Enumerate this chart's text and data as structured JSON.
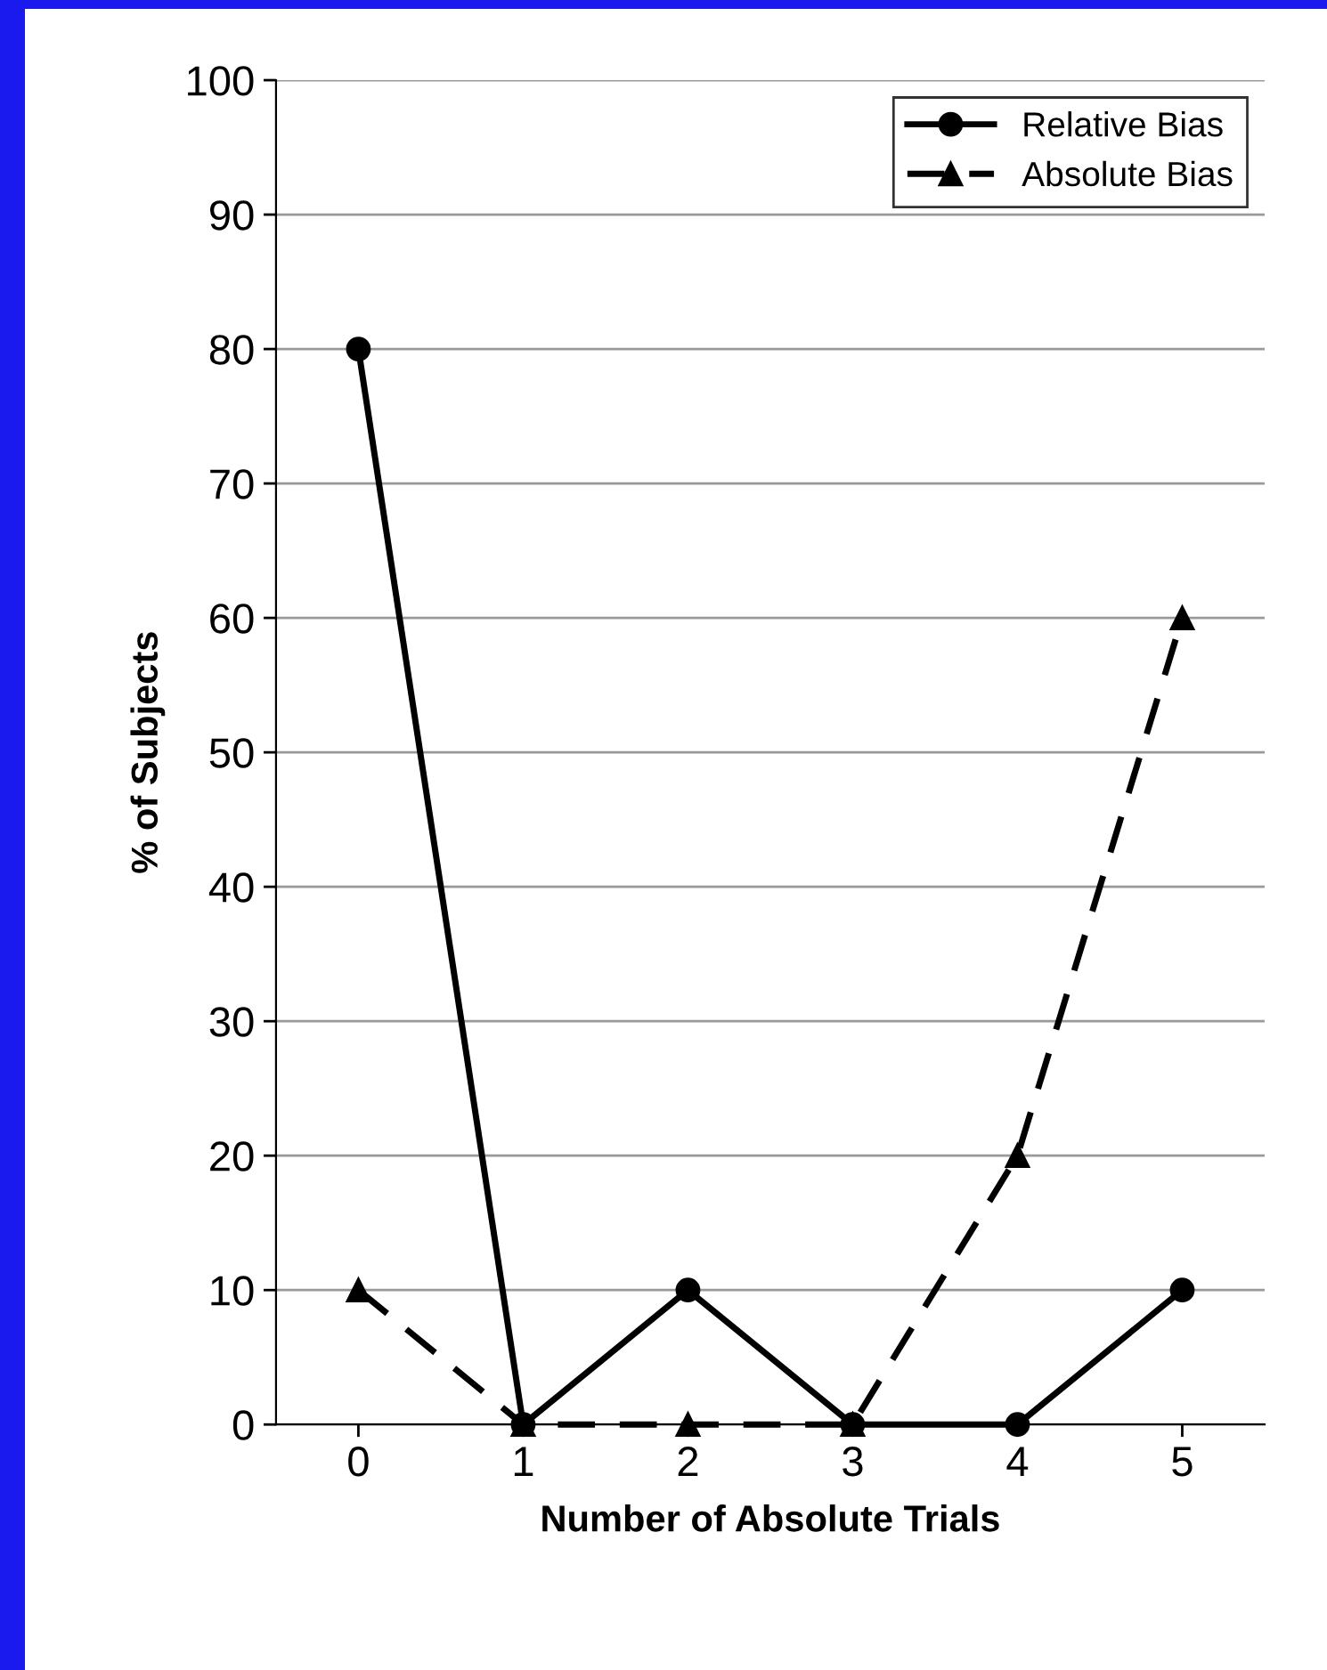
{
  "chart_data": {
    "type": "line",
    "xlabel": "Number of Absolute Trials",
    "ylabel": "% of Subjects",
    "categories": [
      "0",
      "1",
      "2",
      "3",
      "4",
      "5"
    ],
    "series": [
      {
        "name": "Relative Bias",
        "color": "#000000",
        "marker": "circle",
        "line_style": "solid",
        "values": [
          80,
          0,
          10,
          0,
          0,
          10
        ]
      },
      {
        "name": "Absolute Bias",
        "color": "#000000",
        "marker": "triangle",
        "line_style": "dashed",
        "values": [
          10,
          0,
          0,
          0,
          20,
          60
        ]
      }
    ],
    "ylim": [
      0,
      100
    ],
    "yticks": [
      0,
      10,
      20,
      30,
      40,
      50,
      60,
      70,
      80,
      90,
      100
    ],
    "grid": "y",
    "legend": "top right"
  }
}
